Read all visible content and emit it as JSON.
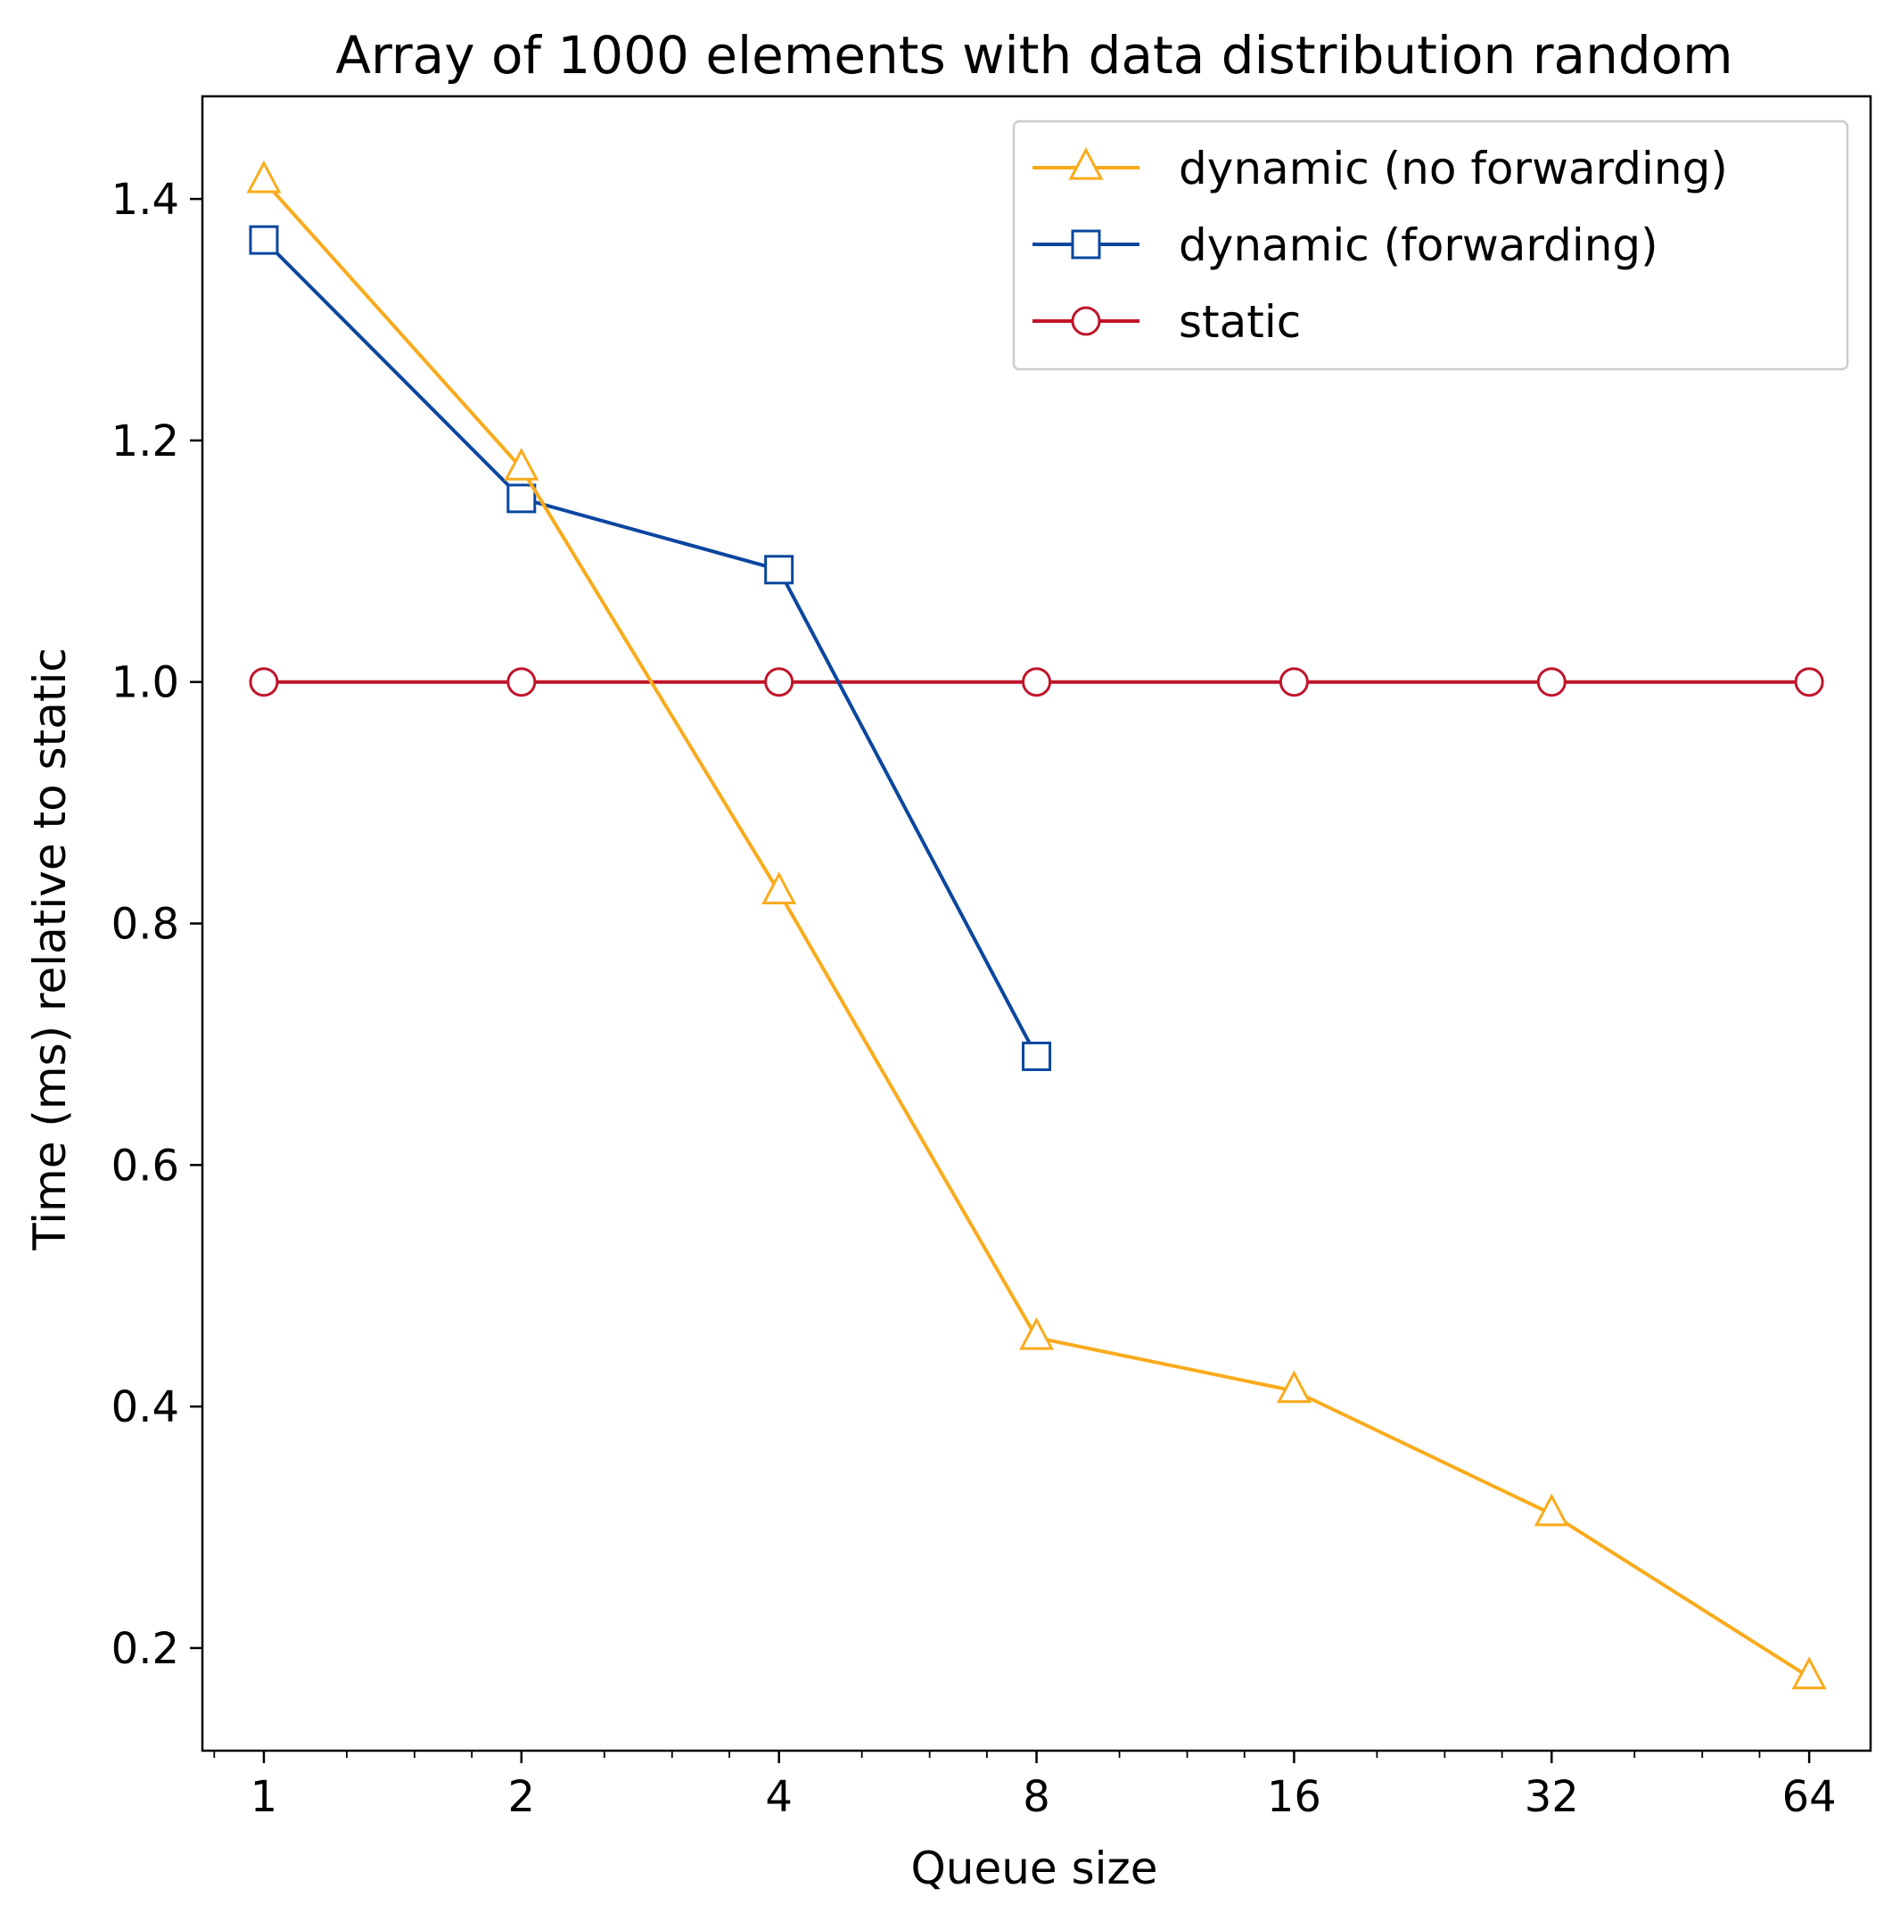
{
  "chart_data": {
    "type": "line",
    "title": "Array of 1000 elements with data distribution random",
    "xlabel": "Queue size",
    "ylabel": "Time (ms) relative to static",
    "x_scale": "log2",
    "x": [
      1,
      2,
      4,
      8,
      16,
      32,
      64
    ],
    "x_tick_labels": [
      "1",
      "2",
      "4",
      "8",
      "16",
      "32",
      "64"
    ],
    "ylim": [
      0.115,
      1.485
    ],
    "y_ticks": [
      0.2,
      0.4,
      0.6,
      0.8,
      1.0,
      1.2,
      1.4
    ],
    "y_tick_labels": [
      "0.2",
      "0.4",
      "0.6",
      "0.8",
      "1.0",
      "1.2",
      "1.4"
    ],
    "grid": false,
    "legend_position": "top-right",
    "series": [
      {
        "name": "dynamic (no forwarding)",
        "color": "#f9ab1c",
        "marker": "triangle",
        "x": [
          1,
          2,
          4,
          8,
          16,
          32,
          64
        ],
        "values": [
          1.415,
          1.177,
          0.826,
          0.457,
          0.413,
          0.311,
          0.176
        ]
      },
      {
        "name": "dynamic (forwarding)",
        "color": "#0a469f",
        "marker": "square",
        "x": [
          1,
          2,
          4,
          8
        ],
        "values": [
          1.366,
          1.152,
          1.093,
          0.69
        ]
      },
      {
        "name": "static",
        "color": "#c0142a",
        "marker": "circle",
        "x": [
          1,
          2,
          4,
          8,
          16,
          32,
          64
        ],
        "values": [
          1.0,
          1.0,
          1.0,
          1.0,
          1.0,
          1.0,
          1.0
        ]
      }
    ]
  }
}
